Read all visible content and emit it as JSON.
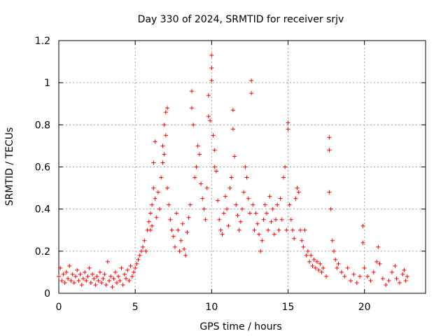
{
  "chart_data": {
    "type": "scatter",
    "title": "Day 330 of 2024, SRMTID for receiver srjv",
    "xlabel": "GPS time / hours",
    "ylabel": "SRMTID / TECUs",
    "xlim": [
      0,
      24
    ],
    "ylim": [
      0,
      1.2
    ],
    "x_ticks": [
      0,
      5,
      10,
      15,
      20
    ],
    "x_tick_labels": [
      "0",
      "5",
      "10",
      "15",
      "20"
    ],
    "y_ticks": [
      0,
      0.2,
      0.4,
      0.6,
      0.8,
      1.0,
      1.2
    ],
    "y_tick_labels": [
      "0",
      "0.2",
      "0.4",
      "0.6",
      "0.8",
      "1",
      "1.2"
    ],
    "grid": true,
    "marker": "+",
    "color": "#ff0000",
    "series": [
      {
        "name": "SRMTID",
        "points": [
          [
            0.0,
            0.08
          ],
          [
            0.1,
            0.12
          ],
          [
            0.2,
            0.06
          ],
          [
            0.3,
            0.09
          ],
          [
            0.4,
            0.05
          ],
          [
            0.5,
            0.1
          ],
          [
            0.6,
            0.07
          ],
          [
            0.7,
            0.13
          ],
          [
            0.8,
            0.06
          ],
          [
            0.9,
            0.09
          ],
          [
            1.0,
            0.05
          ],
          [
            1.1,
            0.08
          ],
          [
            1.2,
            0.11
          ],
          [
            1.3,
            0.06
          ],
          [
            1.4,
            0.09
          ],
          [
            1.5,
            0.04
          ],
          [
            1.6,
            0.07
          ],
          [
            1.7,
            0.1
          ],
          [
            1.8,
            0.06
          ],
          [
            1.9,
            0.08
          ],
          [
            2.0,
            0.12
          ],
          [
            2.1,
            0.05
          ],
          [
            2.2,
            0.09
          ],
          [
            2.3,
            0.07
          ],
          [
            2.4,
            0.04
          ],
          [
            2.5,
            0.08
          ],
          [
            2.6,
            0.06
          ],
          [
            2.7,
            0.1
          ],
          [
            2.8,
            0.05
          ],
          [
            2.9,
            0.07
          ],
          [
            3.0,
            0.09
          ],
          [
            3.1,
            0.04
          ],
          [
            3.2,
            0.15
          ],
          [
            3.3,
            0.06
          ],
          [
            3.4,
            0.08
          ],
          [
            3.5,
            0.03
          ],
          [
            3.6,
            0.07
          ],
          [
            3.7,
            0.1
          ],
          [
            3.8,
            0.05
          ],
          [
            3.9,
            0.08
          ],
          [
            4.0,
            0.06
          ],
          [
            4.1,
            0.12
          ],
          [
            4.2,
            0.04
          ],
          [
            4.3,
            0.09
          ],
          [
            4.4,
            0.07
          ],
          [
            4.5,
            0.11
          ],
          [
            4.6,
            0.06
          ],
          [
            4.7,
            0.13
          ],
          [
            4.8,
            0.08
          ],
          [
            4.9,
            0.1
          ],
          [
            5.0,
            0.12
          ],
          [
            5.1,
            0.14
          ],
          [
            5.2,
            0.16
          ],
          [
            5.3,
            0.18
          ],
          [
            5.4,
            0.2
          ],
          [
            5.5,
            0.22
          ],
          [
            5.6,
            0.25
          ],
          [
            5.7,
            0.2
          ],
          [
            5.8,
            0.3
          ],
          [
            5.9,
            0.34
          ],
          [
            6.0,
            0.38
          ],
          [
            6.0,
            0.3
          ],
          [
            6.1,
            0.42
          ],
          [
            6.1,
            0.32
          ],
          [
            6.2,
            0.5
          ],
          [
            6.2,
            0.62
          ],
          [
            6.3,
            0.45
          ],
          [
            6.3,
            0.72
          ],
          [
            6.4,
            0.36
          ],
          [
            6.5,
            0.48
          ],
          [
            6.6,
            0.4
          ],
          [
            6.7,
            0.55
          ],
          [
            6.8,
            0.62
          ],
          [
            6.8,
            0.7
          ],
          [
            6.9,
            0.66
          ],
          [
            6.9,
            0.8
          ],
          [
            7.0,
            0.86
          ],
          [
            7.0,
            0.75
          ],
          [
            7.1,
            0.88
          ],
          [
            7.1,
            0.5
          ],
          [
            7.2,
            0.42
          ],
          [
            7.3,
            0.35
          ],
          [
            7.4,
            0.3
          ],
          [
            7.5,
            0.27
          ],
          [
            7.6,
            0.22
          ],
          [
            7.7,
            0.38
          ],
          [
            7.8,
            0.3
          ],
          [
            7.9,
            0.2
          ],
          [
            8.0,
            0.25
          ],
          [
            8.1,
            0.33
          ],
          [
            8.2,
            0.21
          ],
          [
            8.3,
            0.18
          ],
          [
            8.4,
            0.29
          ],
          [
            8.5,
            0.36
          ],
          [
            8.6,
            0.42
          ],
          [
            8.7,
            0.88
          ],
          [
            8.7,
            0.96
          ],
          [
            8.8,
            0.8
          ],
          [
            8.9,
            0.55
          ],
          [
            9.0,
            0.6
          ],
          [
            9.1,
            0.7
          ],
          [
            9.2,
            0.66
          ],
          [
            9.3,
            0.52
          ],
          [
            9.4,
            0.45
          ],
          [
            9.5,
            0.4
          ],
          [
            9.6,
            0.35
          ],
          [
            9.7,
            0.5
          ],
          [
            9.8,
            0.84
          ],
          [
            9.8,
            0.94
          ],
          [
            9.9,
            0.82
          ],
          [
            10.0,
            1.13
          ],
          [
            10.0,
            1.07
          ],
          [
            10.0,
            1.01
          ],
          [
            10.1,
            0.75
          ],
          [
            10.2,
            0.68
          ],
          [
            10.2,
            0.6
          ],
          [
            10.3,
            0.58
          ],
          [
            10.4,
            0.44
          ],
          [
            10.5,
            0.35
          ],
          [
            10.6,
            0.3
          ],
          [
            10.7,
            0.28
          ],
          [
            10.8,
            0.38
          ],
          [
            10.9,
            0.46
          ],
          [
            11.0,
            0.4
          ],
          [
            11.1,
            0.32
          ],
          [
            11.2,
            0.5
          ],
          [
            11.3,
            0.55
          ],
          [
            11.4,
            0.87
          ],
          [
            11.4,
            0.78
          ],
          [
            11.5,
            0.65
          ],
          [
            11.6,
            0.42
          ],
          [
            11.7,
            0.37
          ],
          [
            11.8,
            0.3
          ],
          [
            11.9,
            0.34
          ],
          [
            12.0,
            0.4
          ],
          [
            12.1,
            0.48
          ],
          [
            12.2,
            0.6
          ],
          [
            12.3,
            0.55
          ],
          [
            12.4,
            0.45
          ],
          [
            12.5,
            0.38
          ],
          [
            12.6,
            1.01
          ],
          [
            12.6,
            0.95
          ],
          [
            12.7,
            0.42
          ],
          [
            12.8,
            0.3
          ],
          [
            12.9,
            0.38
          ],
          [
            13.0,
            0.33
          ],
          [
            13.1,
            0.28
          ],
          [
            13.2,
            0.2
          ],
          [
            13.3,
            0.25
          ],
          [
            13.4,
            0.35
          ],
          [
            13.5,
            0.42
          ],
          [
            13.6,
            0.38
          ],
          [
            13.7,
            0.3
          ],
          [
            13.8,
            0.46
          ],
          [
            13.9,
            0.34
          ],
          [
            14.0,
            0.4
          ],
          [
            14.1,
            0.28
          ],
          [
            14.2,
            0.35
          ],
          [
            14.3,
            0.42
          ],
          [
            14.4,
            0.3
          ],
          [
            14.5,
            0.45
          ],
          [
            14.6,
            0.35
          ],
          [
            14.7,
            0.55
          ],
          [
            14.8,
            0.6
          ],
          [
            14.9,
            0.3
          ],
          [
            15.0,
            0.78
          ],
          [
            15.0,
            0.81
          ],
          [
            15.1,
            0.42
          ],
          [
            15.2,
            0.35
          ],
          [
            15.3,
            0.3
          ],
          [
            15.4,
            0.26
          ],
          [
            15.5,
            0.45
          ],
          [
            15.6,
            0.5
          ],
          [
            15.7,
            0.48
          ],
          [
            15.8,
            0.3
          ],
          [
            15.9,
            0.25
          ],
          [
            16.0,
            0.22
          ],
          [
            16.1,
            0.3
          ],
          [
            16.2,
            0.18
          ],
          [
            16.3,
            0.2
          ],
          [
            16.4,
            0.15
          ],
          [
            16.5,
            0.18
          ],
          [
            16.6,
            0.13
          ],
          [
            16.7,
            0.16
          ],
          [
            16.8,
            0.12
          ],
          [
            16.9,
            0.15
          ],
          [
            17.0,
            0.11
          ],
          [
            17.1,
            0.14
          ],
          [
            17.2,
            0.1
          ],
          [
            17.3,
            0.12
          ],
          [
            17.5,
            0.08
          ],
          [
            17.7,
            0.48
          ],
          [
            17.7,
            0.68
          ],
          [
            17.7,
            0.74
          ],
          [
            17.8,
            0.4
          ],
          [
            17.9,
            0.25
          ],
          [
            18.0,
            0.2
          ],
          [
            18.1,
            0.16
          ],
          [
            18.2,
            0.12
          ],
          [
            18.3,
            0.14
          ],
          [
            18.5,
            0.1
          ],
          [
            18.7,
            0.08
          ],
          [
            18.9,
            0.12
          ],
          [
            19.1,
            0.06
          ],
          [
            19.3,
            0.09
          ],
          [
            19.5,
            0.05
          ],
          [
            19.7,
            0.08
          ],
          [
            19.9,
            0.32
          ],
          [
            19.9,
            0.24
          ],
          [
            20.0,
            0.12
          ],
          [
            20.2,
            0.08
          ],
          [
            20.4,
            0.06
          ],
          [
            20.6,
            0.1
          ],
          [
            20.8,
            0.15
          ],
          [
            20.9,
            0.22
          ],
          [
            21.0,
            0.14
          ],
          [
            21.2,
            0.07
          ],
          [
            21.4,
            0.04
          ],
          [
            21.6,
            0.06
          ],
          [
            21.8,
            0.1
          ],
          [
            22.0,
            0.13
          ],
          [
            22.1,
            0.07
          ],
          [
            22.3,
            0.05
          ],
          [
            22.5,
            0.09
          ],
          [
            22.6,
            0.11
          ],
          [
            22.7,
            0.06
          ],
          [
            22.8,
            0.08
          ]
        ]
      }
    ]
  }
}
